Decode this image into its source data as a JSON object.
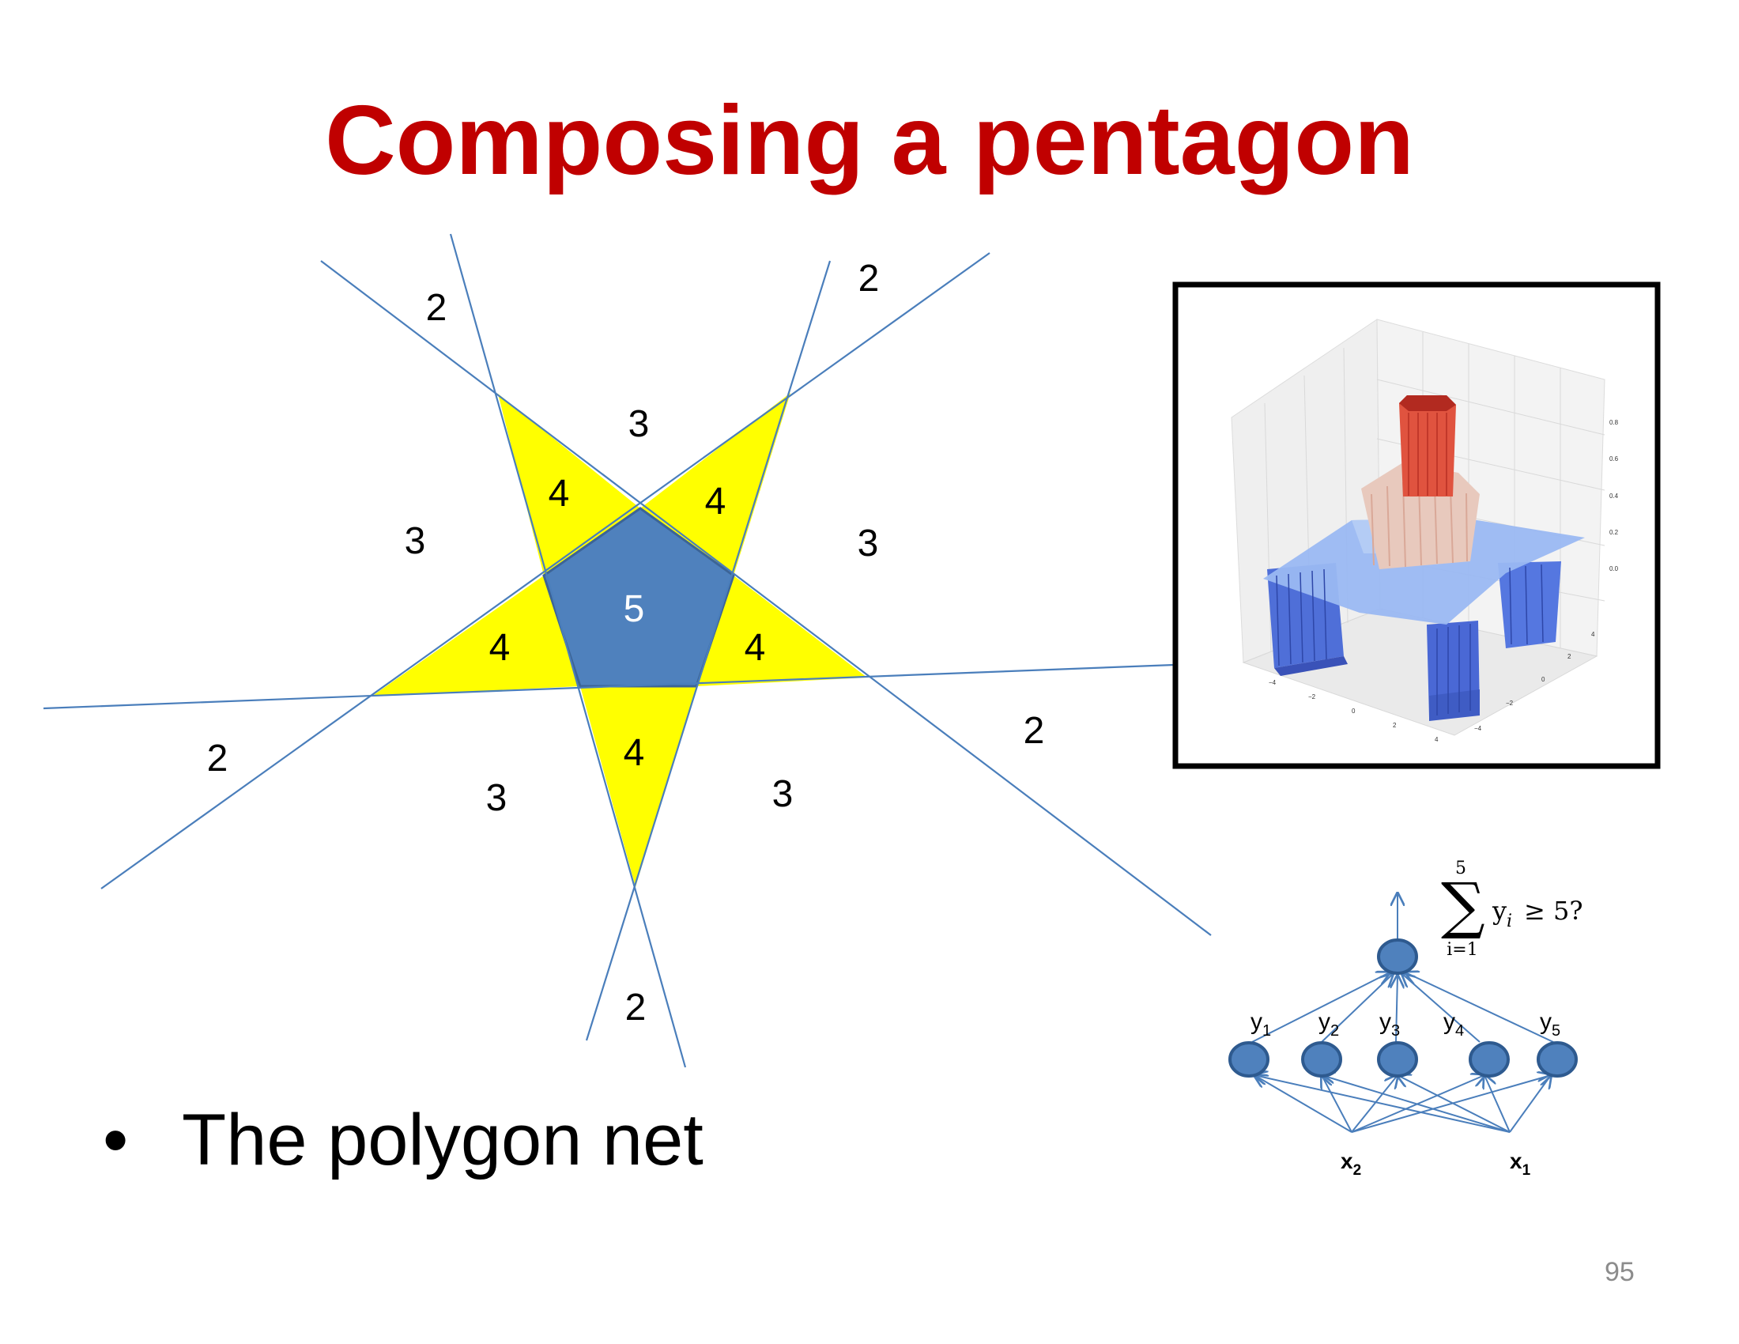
{
  "title": "Composing a pentagon",
  "colors": {
    "title": "#c00000",
    "line": "#4a7ebb",
    "pentagon": "#4f81bd",
    "triangle": "#ffff00",
    "node": "#4f81bd",
    "frame": "#000000"
  },
  "region_labels": {
    "outer": [
      "2",
      "2",
      "2",
      "2",
      "2"
    ],
    "middle": [
      "3",
      "3",
      "3",
      "3",
      "3"
    ],
    "triangles": [
      "4",
      "4",
      "4",
      "4",
      "4"
    ],
    "center": "5"
  },
  "plot_inset": {
    "y_ticks": [
      "0.0",
      "0.2",
      "0.4",
      "0.6",
      "0.8"
    ],
    "x_ticks": [
      "−4",
      "−2",
      "0",
      "2",
      "4"
    ],
    "depth_ticks": [
      "−4",
      "−2",
      "0",
      "2",
      "4"
    ]
  },
  "network": {
    "output_sum_upper": "5",
    "output_sum_lower": "i=1",
    "output_summand": "y",
    "output_summand_sub": "i",
    "output_condition": "≥ 5?",
    "hidden_labels": [
      {
        "base": "y",
        "sub": "1"
      },
      {
        "base": "y",
        "sub": "2"
      },
      {
        "base": "y",
        "sub": "3"
      },
      {
        "base": "y",
        "sub": "4"
      },
      {
        "base": "y",
        "sub": "5"
      }
    ],
    "inputs": [
      {
        "base": "x",
        "sub": "2"
      },
      {
        "base": "x",
        "sub": "1"
      }
    ]
  },
  "bullet": "The polygon net",
  "page_number": "95"
}
